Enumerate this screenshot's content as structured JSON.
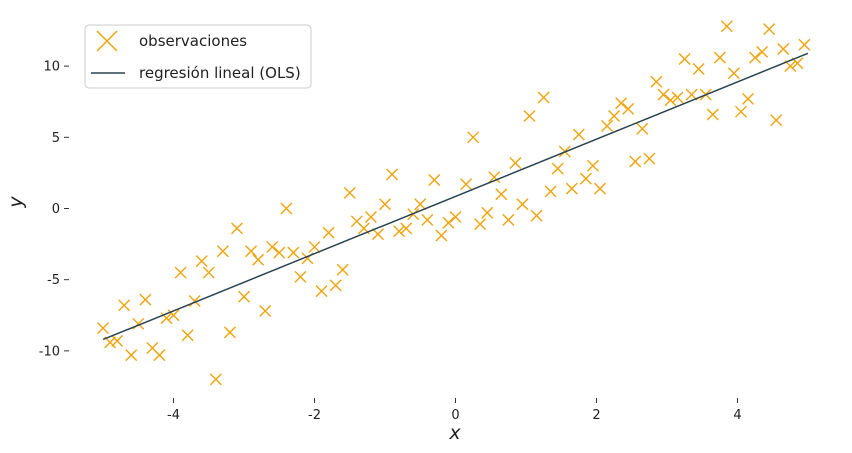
{
  "chart_data": {
    "type": "scatter",
    "title": "",
    "xlabel": "x",
    "ylabel": "y",
    "xlim": [
      -5.1,
      5.1
    ],
    "ylim": [
      -13.1,
      13.1
    ],
    "xticks": [
      -4,
      -2,
      0,
      2,
      4
    ],
    "yticks": [
      -10,
      -5,
      0,
      5,
      10
    ],
    "xtick_labels": [
      "-4",
      "-2",
      "0",
      "2",
      "4"
    ],
    "ytick_labels": [
      "-10",
      "-5",
      "0",
      "5",
      "10"
    ],
    "grid": false,
    "legend_position": "top-left",
    "colors": {
      "points": "#f0a30a",
      "line": "#2b4450"
    },
    "series": [
      {
        "name": "observaciones",
        "kind": "scatter",
        "marker": "x",
        "points": [
          [
            -5.0,
            -8.4
          ],
          [
            -4.9,
            -9.4
          ],
          [
            -4.8,
            -9.3
          ],
          [
            -4.7,
            -6.8
          ],
          [
            -4.6,
            -10.3
          ],
          [
            -4.5,
            -8.1
          ],
          [
            -4.4,
            -6.4
          ],
          [
            -4.3,
            -9.8
          ],
          [
            -4.2,
            -10.3
          ],
          [
            -4.1,
            -7.7
          ],
          [
            -4.0,
            -7.5
          ],
          [
            -3.9,
            -4.5
          ],
          [
            -3.8,
            -8.9
          ],
          [
            -3.7,
            -6.5
          ],
          [
            -3.6,
            -3.7
          ],
          [
            -3.5,
            -4.5
          ],
          [
            -3.4,
            -12.0
          ],
          [
            -3.3,
            -3.0
          ],
          [
            -3.2,
            -8.7
          ],
          [
            -3.1,
            -1.4
          ],
          [
            -3.0,
            -6.2
          ],
          [
            -2.9,
            -3.0
          ],
          [
            -2.8,
            -3.6
          ],
          [
            -2.7,
            -7.2
          ],
          [
            -2.6,
            -2.7
          ],
          [
            -2.5,
            -3.1
          ],
          [
            -2.4,
            0.0
          ],
          [
            -2.3,
            -3.1
          ],
          [
            -2.2,
            -4.8
          ],
          [
            -2.1,
            -3.5
          ],
          [
            -2.0,
            -2.7
          ],
          [
            -1.9,
            -5.8
          ],
          [
            -1.8,
            -1.7
          ],
          [
            -1.7,
            -5.4
          ],
          [
            -1.6,
            -4.3
          ],
          [
            -1.5,
            1.1
          ],
          [
            -1.4,
            -0.9
          ],
          [
            -1.3,
            -1.4
          ],
          [
            -1.2,
            -0.6
          ],
          [
            -1.1,
            -1.8
          ],
          [
            -1.0,
            0.3
          ],
          [
            -0.9,
            2.4
          ],
          [
            -0.8,
            -1.6
          ],
          [
            -0.7,
            -1.4
          ],
          [
            -0.6,
            -0.4
          ],
          [
            -0.5,
            0.3
          ],
          [
            -0.4,
            -0.8
          ],
          [
            -0.3,
            2.0
          ],
          [
            -0.2,
            -1.9
          ],
          [
            -0.1,
            -1.0
          ],
          [
            0.0,
            -0.6
          ],
          [
            0.15,
            1.7
          ],
          [
            0.25,
            5.0
          ],
          [
            0.35,
            -1.1
          ],
          [
            0.45,
            -0.3
          ],
          [
            0.55,
            2.2
          ],
          [
            0.65,
            1.0
          ],
          [
            0.75,
            -0.8
          ],
          [
            0.85,
            3.2
          ],
          [
            0.95,
            0.3
          ],
          [
            1.05,
            6.5
          ],
          [
            1.15,
            -0.5
          ],
          [
            1.25,
            7.8
          ],
          [
            1.35,
            1.2
          ],
          [
            1.45,
            2.8
          ],
          [
            1.55,
            4.0
          ],
          [
            1.65,
            1.4
          ],
          [
            1.75,
            5.2
          ],
          [
            1.85,
            2.1
          ],
          [
            1.95,
            3.0
          ],
          [
            2.05,
            1.4
          ],
          [
            2.15,
            5.8
          ],
          [
            2.25,
            6.5
          ],
          [
            2.35,
            7.4
          ],
          [
            2.45,
            7.0
          ],
          [
            2.55,
            3.3
          ],
          [
            2.65,
            5.6
          ],
          [
            2.75,
            3.5
          ],
          [
            2.85,
            8.9
          ],
          [
            2.95,
            8.0
          ],
          [
            3.05,
            7.6
          ],
          [
            3.15,
            7.8
          ],
          [
            3.25,
            10.5
          ],
          [
            3.35,
            8.0
          ],
          [
            3.45,
            9.8
          ],
          [
            3.55,
            8.0
          ],
          [
            3.65,
            6.6
          ],
          [
            3.75,
            10.6
          ],
          [
            3.85,
            12.8
          ],
          [
            3.95,
            9.5
          ],
          [
            4.05,
            6.8
          ],
          [
            4.15,
            7.7
          ],
          [
            4.25,
            10.6
          ],
          [
            4.35,
            11.0
          ],
          [
            4.45,
            12.6
          ],
          [
            4.55,
            6.2
          ],
          [
            4.65,
            11.2
          ],
          [
            4.75,
            10.0
          ],
          [
            4.85,
            10.2
          ],
          [
            4.95,
            11.5
          ]
        ]
      },
      {
        "name": "regresión lineal (OLS)",
        "kind": "line",
        "points": [
          [
            -5.0,
            -9.2
          ],
          [
            5.0,
            10.9
          ]
        ]
      }
    ]
  }
}
